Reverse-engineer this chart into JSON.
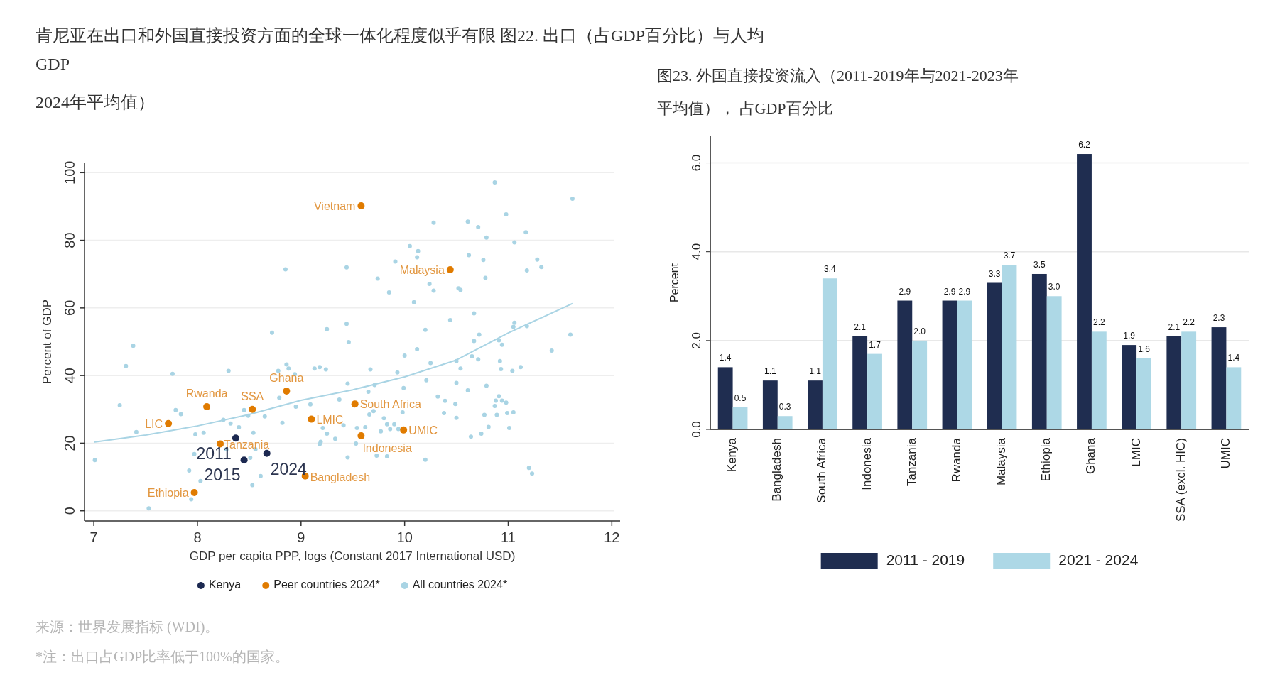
{
  "chart_data": [
    {
      "type": "scatter",
      "title": "肯尼亚在出口和外国直接投资方面的全球一体化程度似乎有限 图22. 出口（占GDP百分比）与人均GDP",
      "subtitle": "2024年平均值）",
      "xlabel": "GDP per capita PPP, logs (Constant 2017 International USD)",
      "ylabel": "Percent of GDP",
      "xlim": [
        6.91,
        12.08
      ],
      "ylim": [
        -3,
        103
      ],
      "xticks": [
        7,
        8,
        9,
        10,
        11,
        12
      ],
      "yticks": [
        0,
        20,
        40,
        60,
        80,
        100
      ],
      "grid": "y",
      "legend": "bottom",
      "marker": "circle",
      "annotations": [
        {
          "text": "2011",
          "x": 8.37,
          "y": 21.5
        },
        {
          "text": "2015",
          "x": 8.45,
          "y": 15.0
        },
        {
          "text": "2024",
          "x": 8.67,
          "y": 17.0
        },
        "来源：世界发展指标 (WDI)。",
        "*注：出口占GDP比率低于100%的国家。"
      ],
      "series": [
        {
          "name": "Kenya",
          "color": "#1c2951",
          "x": [
            8.37,
            8.45,
            8.67
          ],
          "values": [
            21.5,
            15.0,
            17.0
          ]
        },
        {
          "name": "Peer countries 2024*",
          "color": "#e07b00",
          "x": [
            9.58,
            10.44,
            8.86,
            8.09,
            8.53,
            7.72,
            8.22,
            9.52,
            9.1,
            9.99,
            9.58,
            9.04,
            7.97
          ],
          "values": [
            90.2,
            71.3,
            35.4,
            30.8,
            30.0,
            25.8,
            19.8,
            31.6,
            27.1,
            23.9,
            22.2,
            10.3,
            5.4
          ],
          "value_labels": [
            "Vietnam",
            "Malaysia",
            "Ghana",
            "Rwanda",
            "SSA",
            "LIC",
            "Tanzania",
            "South Africa",
            "LMIC",
            "UMIC",
            "Indonesia",
            "Bangladesh",
            "Ethiopia"
          ]
        },
        {
          "name": "All countries 2024*",
          "color": "#a9d4e4",
          "x": [
            7.01,
            7.25,
            7.31,
            7.38,
            7.41,
            7.53,
            7.76,
            7.79,
            7.84,
            7.92,
            7.94,
            7.97,
            7.98,
            8.03,
            8.06,
            8.25,
            8.3,
            8.28,
            8.32,
            8.4,
            8.45,
            8.49,
            8.51,
            8.54,
            8.53,
            8.56,
            8.61,
            8.65,
            8.72,
            8.78,
            8.79,
            8.82,
            8.85,
            8.86,
            8.88,
            8.94,
            8.95,
            9.09,
            9.13,
            9.18,
            9.24,
            9.21,
            9.25,
            9.19,
            9.18,
            9.25,
            9.33,
            9.37,
            9.41,
            9.44,
            9.44,
            9.46,
            9.45,
            9.45,
            10.87,
            11.62,
            10.28,
            10.61,
            10.71,
            10.98,
            10.79,
            11.17,
            11.06,
            10.05,
            10.13,
            10.12,
            9.91,
            10.62,
            10.76,
            11.28,
            11.32,
            11.18,
            10.78,
            9.74,
            10.24,
            10.28,
            10.52,
            10.54,
            9.85,
            10.09,
            10.67,
            10.44,
            11.06,
            11.05,
            11.18,
            11.6,
            10.2,
            10.72,
            10.67,
            10.91,
            10.94,
            11.42,
            10.12,
            10.0,
            10.65,
            10.71,
            10.25,
            10.5,
            10.54,
            10.92,
            10.93,
            11.04,
            11.12,
            9.67,
            9.93,
            9.71,
            9.99,
            10.21,
            10.5,
            9.65,
            10.61,
            10.79,
            10.32,
            10.39,
            10.49,
            10.91,
            10.88,
            10.94,
            10.98,
            10.87,
            9.7,
            9.66,
            9.98,
            10.38,
            10.5,
            10.77,
            10.89,
            10.99,
            11.05,
            9.8,
            9.54,
            9.62,
            9.83,
            9.9,
            9.86,
            9.77,
            9.94,
            10.81,
            11.01,
            10.74,
            10.64,
            9.53,
            9.73,
            9.83,
            10.2,
            11.2,
            11.23
          ],
          "values": [
            15.0,
            31.2,
            42.8,
            48.8,
            23.3,
            0.7,
            40.5,
            29.8,
            28.6,
            11.9,
            3.4,
            16.8,
            22.6,
            8.8,
            23.1,
            26.9,
            41.4,
            18.2,
            25.8,
            24.7,
            29.8,
            28.1,
            15.7,
            23.1,
            7.6,
            18.2,
            10.3,
            27.9,
            52.7,
            41.4,
            33.4,
            26.0,
            71.4,
            43.3,
            42.1,
            40.4,
            30.8,
            31.5,
            42.1,
            42.5,
            41.8,
            24.5,
            22.8,
            20.4,
            19.7,
            53.7,
            21.3,
            32.9,
            25.3,
            72.0,
            55.3,
            49.9,
            37.6,
            15.8,
            97.1,
            92.3,
            85.2,
            85.5,
            83.9,
            87.7,
            80.8,
            82.4,
            79.4,
            78.3,
            76.8,
            75.0,
            73.7,
            75.6,
            74.2,
            74.3,
            72.1,
            71.1,
            68.9,
            68.7,
            67.1,
            65.1,
            65.8,
            65.3,
            64.6,
            61.7,
            58.4,
            56.4,
            55.6,
            54.4,
            54.6,
            52.1,
            53.5,
            52.1,
            50.2,
            50.4,
            49.1,
            47.4,
            47.8,
            45.9,
            45.7,
            44.8,
            43.7,
            44.3,
            42.1,
            44.3,
            41.9,
            41.4,
            42.5,
            41.8,
            40.9,
            37.2,
            36.3,
            38.6,
            37.8,
            35.2,
            35.6,
            37.0,
            33.8,
            32.5,
            31.6,
            33.9,
            32.6,
            32.6,
            32.0,
            31.0,
            29.5,
            28.5,
            29.1,
            28.9,
            27.5,
            28.4,
            28.4,
            28.9,
            29.1,
            27.4,
            24.5,
            24.7,
            25.6,
            25.6,
            24.2,
            23.5,
            24.2,
            24.8,
            24.5,
            22.8,
            21.9,
            19.9,
            16.3,
            16.1,
            15.1,
            12.7,
            11.0
          ]
        },
        {
          "type": "line",
          "marker": "none",
          "color": "#a9d4e4",
          "x": [
            7,
            7.5,
            8,
            8.5,
            9,
            9.5,
            10,
            10.5,
            11,
            11.62
          ],
          "values": [
            20.3,
            22.4,
            25.1,
            28.5,
            32.7,
            35.8,
            39.6,
            44.6,
            52.6,
            61.3
          ]
        }
      ]
    },
    {
      "type": "bar",
      "title": "图23. 外国直接投资流入（2011-2019年与2021-2023年平均值）， 占GDP百分比",
      "ylabel": "Percent",
      "categories": [
        "Kenya",
        "Bangladesh",
        "South Africa",
        "Indonesia",
        "Tanzania",
        "Rwanda",
        "Malaysia",
        "Ethiopia",
        "Ghana",
        "LMIC",
        "SSA (excl. HIC)",
        "UMIC"
      ],
      "ylim": [
        0,
        6.6
      ],
      "yticks": [
        {
          "value": 0,
          "label": "0.0"
        },
        {
          "value": 2,
          "label": "2.0"
        },
        {
          "value": 4,
          "label": "4.0"
        },
        {
          "value": 6,
          "label": "6.0"
        }
      ],
      "grid": "y",
      "legend": "bottom",
      "series": [
        {
          "name": "2011 - 2019",
          "color": "#1f2d50",
          "values": [
            1.4,
            1.1,
            1.1,
            2.1,
            2.9,
            2.9,
            3.3,
            3.5,
            6.2,
            1.9,
            2.1,
            2.3
          ],
          "value_labels": [
            "1.4",
            "1.1",
            "1.1",
            "2.1",
            "2.9",
            "2.9",
            "3.3",
            "3.5",
            "6.2",
            "1.9",
            "2.1",
            "2.3"
          ]
        },
        {
          "name": "2021 - 2024",
          "color": "#add8e6",
          "values": [
            0.5,
            0.3,
            3.4,
            1.7,
            2.0,
            2.9,
            3.7,
            3.0,
            2.2,
            1.6,
            2.2,
            1.4
          ],
          "value_labels": [
            "0.5",
            "0.3",
            "3.4",
            "1.7",
            "2.0",
            "2.9",
            "3.7",
            "3.0",
            "2.2",
            "1.6",
            "2.2",
            "1.4"
          ]
        }
      ]
    }
  ]
}
